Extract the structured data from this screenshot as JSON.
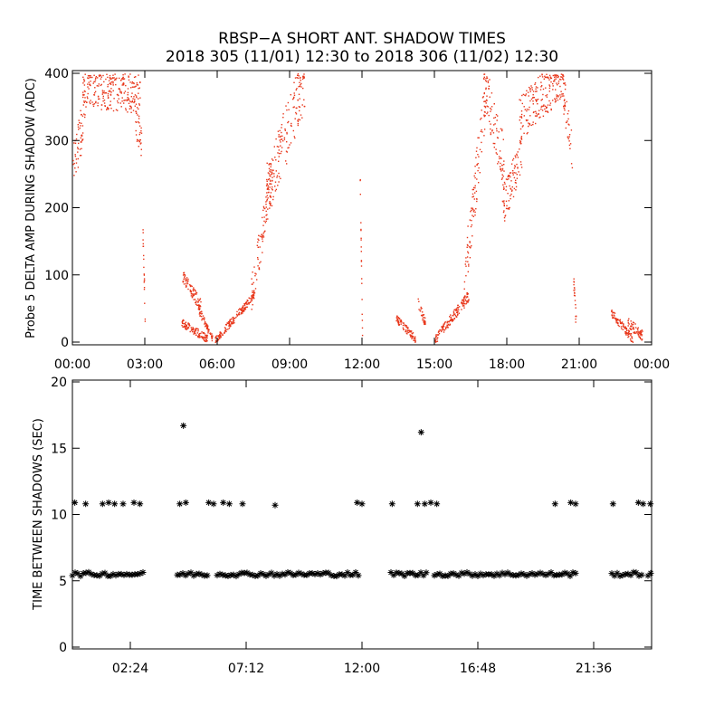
{
  "title": {
    "line1": "RBSP−A SHORT ANT. SHADOW TIMES",
    "line2": "2018 305 (11/01) 12:30 to 2018 306 (11/02) 12:30"
  },
  "colors": {
    "series_top": "#e8361a",
    "series_bottom": "#000000"
  },
  "chart_data": [
    {
      "type": "scatter",
      "ylabel": "Probe 5 DELTA AMP DURING SHADOW (ADC)",
      "xlim_hours": [
        0,
        24
      ],
      "ylim": [
        0,
        400
      ],
      "xticks": [
        {
          "h": 0,
          "label": "00:00"
        },
        {
          "h": 3,
          "label": "03:00"
        },
        {
          "h": 6,
          "label": "06:00"
        },
        {
          "h": 9,
          "label": "09:00"
        },
        {
          "h": 12,
          "label": "12:00"
        },
        {
          "h": 15,
          "label": "15:00"
        },
        {
          "h": 18,
          "label": "18:00"
        },
        {
          "h": 21,
          "label": "21:00"
        },
        {
          "h": 24,
          "label": "00:00"
        }
      ],
      "yticks": [
        {
          "v": 0,
          "label": "0"
        },
        {
          "v": 100,
          "label": "100"
        },
        {
          "v": 200,
          "label": "200"
        },
        {
          "v": 300,
          "label": "300"
        },
        {
          "v": 400,
          "label": "400"
        }
      ],
      "series_segments": [
        {
          "h0": 0.0,
          "h1": 0.5,
          "y0": 260,
          "y1": 340,
          "jitter": 35
        },
        {
          "h0": 0.4,
          "h1": 2.8,
          "y0": 380,
          "y1": 370,
          "jitter": 30
        },
        {
          "h0": 2.6,
          "h1": 2.85,
          "y0": 330,
          "y1": 300,
          "jitter": 25
        },
        {
          "h0": 2.9,
          "h1": 3.0,
          "y0": 160,
          "y1": 30,
          "jitter": 15
        },
        {
          "h0": 4.55,
          "h1": 5.3,
          "y0": 100,
          "y1": 55,
          "jitter": 10
        },
        {
          "h0": 5.2,
          "h1": 5.8,
          "y0": 50,
          "y1": 5,
          "jitter": 6
        },
        {
          "h0": 4.5,
          "h1": 5.6,
          "y0": 30,
          "y1": 5,
          "jitter": 6
        },
        {
          "h0": 5.9,
          "h1": 7.5,
          "y0": 3,
          "y1": 70,
          "jitter": 6
        },
        {
          "h0": 7.4,
          "h1": 8.3,
          "y0": 70,
          "y1": 260,
          "jitter": 30
        },
        {
          "h0": 8.0,
          "h1": 9.6,
          "y0": 220,
          "y1": 390,
          "jitter": 45
        },
        {
          "h0": 11.9,
          "h1": 12.0,
          "y0": 250,
          "y1": 5,
          "jitter": 5
        },
        {
          "h0": 13.4,
          "h1": 14.2,
          "y0": 35,
          "y1": 5,
          "jitter": 6
        },
        {
          "h0": 14.3,
          "h1": 14.6,
          "y0": 60,
          "y1": 30,
          "jitter": 8
        },
        {
          "h0": 15.0,
          "h1": 16.4,
          "y0": 3,
          "y1": 70,
          "jitter": 8
        },
        {
          "h0": 16.2,
          "h1": 17.1,
          "y0": 80,
          "y1": 370,
          "jitter": 40
        },
        {
          "h0": 17.0,
          "h1": 17.9,
          "y0": 390,
          "y1": 260,
          "jitter": 40
        },
        {
          "h0": 17.8,
          "h1": 18.6,
          "y0": 200,
          "y1": 280,
          "jitter": 30
        },
        {
          "h0": 18.5,
          "h1": 20.3,
          "y0": 330,
          "y1": 400,
          "jitter": 35
        },
        {
          "h0": 20.3,
          "h1": 20.7,
          "y0": 380,
          "y1": 280,
          "jitter": 30
        },
        {
          "h0": 20.75,
          "h1": 20.85,
          "y0": 90,
          "y1": 30,
          "jitter": 10
        },
        {
          "h0": 22.3,
          "h1": 23.2,
          "y0": 45,
          "y1": 5,
          "jitter": 6
        },
        {
          "h0": 23.0,
          "h1": 23.6,
          "y0": 30,
          "y1": 10,
          "jitter": 8
        }
      ]
    },
    {
      "type": "scatter",
      "ylabel": "TIME BETWEEN SHADOWS (SEC)",
      "xlim_hours": [
        0,
        24
      ],
      "ylim": [
        0,
        20
      ],
      "xticks": [
        {
          "h": 2.4,
          "label": "02:24"
        },
        {
          "h": 7.2,
          "label": "07:12"
        },
        {
          "h": 12.0,
          "label": "12:00"
        },
        {
          "h": 16.8,
          "label": "16:48"
        },
        {
          "h": 21.6,
          "label": "21:36"
        }
      ],
      "yticks": [
        {
          "v": 0,
          "label": "0"
        },
        {
          "v": 5,
          "label": "5"
        },
        {
          "v": 10,
          "label": "10"
        },
        {
          "v": 15,
          "label": "15"
        },
        {
          "v": 20,
          "label": "20"
        }
      ],
      "band_value": 5.5,
      "band_ranges_hours": [
        [
          0.0,
          3.0
        ],
        [
          4.35,
          5.65
        ],
        [
          6.0,
          11.95
        ],
        [
          13.2,
          14.7
        ],
        [
          15.0,
          20.95
        ],
        [
          22.35,
          23.65
        ],
        [
          23.85,
          24.0
        ]
      ],
      "points": [
        {
          "h": 0.1,
          "v": 10.9
        },
        {
          "h": 0.55,
          "v": 10.8
        },
        {
          "h": 1.25,
          "v": 10.8
        },
        {
          "h": 1.5,
          "v": 10.9
        },
        {
          "h": 1.75,
          "v": 10.8
        },
        {
          "h": 2.1,
          "v": 10.8
        },
        {
          "h": 2.55,
          "v": 10.9
        },
        {
          "h": 2.8,
          "v": 10.8
        },
        {
          "h": 4.45,
          "v": 10.8
        },
        {
          "h": 4.6,
          "v": 16.7
        },
        {
          "h": 4.7,
          "v": 10.9
        },
        {
          "h": 5.65,
          "v": 10.9
        },
        {
          "h": 5.85,
          "v": 10.8
        },
        {
          "h": 6.25,
          "v": 10.9
        },
        {
          "h": 6.5,
          "v": 10.8
        },
        {
          "h": 7.05,
          "v": 10.8
        },
        {
          "h": 8.4,
          "v": 10.7
        },
        {
          "h": 11.8,
          "v": 10.9
        },
        {
          "h": 12.0,
          "v": 10.8
        },
        {
          "h": 13.25,
          "v": 10.8
        },
        {
          "h": 14.3,
          "v": 10.8
        },
        {
          "h": 14.45,
          "v": 16.2
        },
        {
          "h": 14.6,
          "v": 10.8
        },
        {
          "h": 14.85,
          "v": 10.9
        },
        {
          "h": 15.1,
          "v": 10.8
        },
        {
          "h": 20.0,
          "v": 10.8
        },
        {
          "h": 20.65,
          "v": 10.9
        },
        {
          "h": 20.85,
          "v": 10.8
        },
        {
          "h": 22.4,
          "v": 10.8
        },
        {
          "h": 23.45,
          "v": 10.9
        },
        {
          "h": 23.65,
          "v": 10.8
        },
        {
          "h": 23.95,
          "v": 10.8
        }
      ]
    }
  ]
}
